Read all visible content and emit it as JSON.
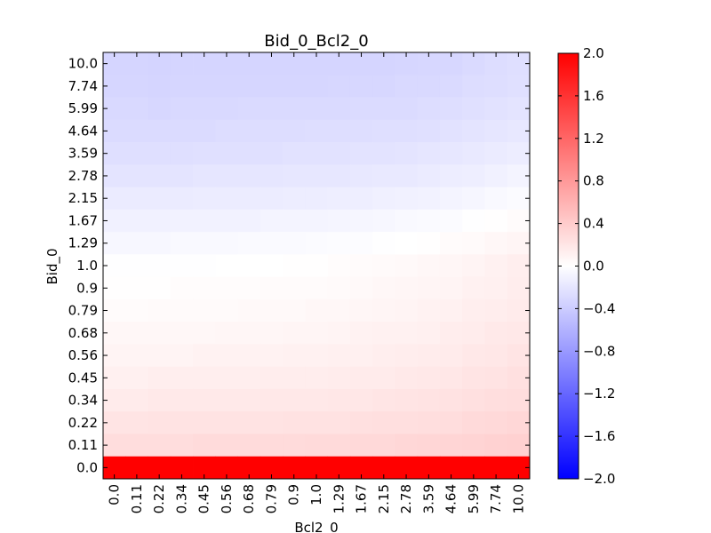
{
  "chart_data": {
    "type": "heatmap",
    "title": "Bid_0_Bcl2_0",
    "xlabel": "Bcl2_0",
    "ylabel": "Bid_0",
    "x_categories": [
      "0.0",
      "0.11",
      "0.22",
      "0.34",
      "0.45",
      "0.56",
      "0.68",
      "0.79",
      "0.9",
      "1.0",
      "1.29",
      "1.67",
      "2.15",
      "2.78",
      "3.59",
      "4.64",
      "5.99",
      "7.74",
      "10.0"
    ],
    "y_categories": [
      "10.0",
      "7.74",
      "5.99",
      "4.64",
      "3.59",
      "2.78",
      "2.15",
      "1.67",
      "1.29",
      "1.0",
      "0.9",
      "0.79",
      "0.68",
      "0.56",
      "0.45",
      "0.34",
      "0.22",
      "0.11",
      "0.0"
    ],
    "values": [
      [
        -0.33,
        -0.33,
        -0.34,
        -0.33,
        -0.33,
        -0.33,
        -0.33,
        -0.33,
        -0.33,
        -0.33,
        -0.33,
        -0.33,
        -0.33,
        -0.32,
        -0.31,
        -0.31,
        -0.29,
        -0.27,
        -0.25
      ],
      [
        -0.32,
        -0.32,
        -0.33,
        -0.32,
        -0.32,
        -0.32,
        -0.32,
        -0.32,
        -0.32,
        -0.32,
        -0.31,
        -0.31,
        -0.31,
        -0.3,
        -0.3,
        -0.29,
        -0.27,
        -0.26,
        -0.24
      ],
      [
        -0.3,
        -0.3,
        -0.31,
        -0.3,
        -0.3,
        -0.3,
        -0.29,
        -0.29,
        -0.29,
        -0.29,
        -0.29,
        -0.28,
        -0.28,
        -0.28,
        -0.27,
        -0.26,
        -0.24,
        -0.23,
        -0.21
      ],
      [
        -0.28,
        -0.28,
        -0.28,
        -0.28,
        -0.28,
        -0.27,
        -0.27,
        -0.27,
        -0.27,
        -0.26,
        -0.26,
        -0.26,
        -0.25,
        -0.25,
        -0.24,
        -0.23,
        -0.21,
        -0.2,
        -0.18
      ],
      [
        -0.25,
        -0.25,
        -0.25,
        -0.25,
        -0.24,
        -0.24,
        -0.24,
        -0.24,
        -0.23,
        -0.23,
        -0.23,
        -0.22,
        -0.22,
        -0.21,
        -0.2,
        -0.19,
        -0.17,
        -0.16,
        -0.14
      ],
      [
        -0.21,
        -0.21,
        -0.21,
        -0.21,
        -0.2,
        -0.2,
        -0.2,
        -0.2,
        -0.19,
        -0.19,
        -0.19,
        -0.18,
        -0.17,
        -0.17,
        -0.16,
        -0.14,
        -0.13,
        -0.11,
        -0.09
      ],
      [
        -0.16,
        -0.16,
        -0.16,
        -0.16,
        -0.15,
        -0.15,
        -0.15,
        -0.15,
        -0.14,
        -0.14,
        -0.13,
        -0.13,
        -0.12,
        -0.11,
        -0.1,
        -0.09,
        -0.07,
        -0.05,
        -0.03
      ],
      [
        -0.11,
        -0.11,
        -0.11,
        -0.1,
        -0.1,
        -0.1,
        -0.1,
        -0.09,
        -0.09,
        -0.09,
        -0.08,
        -0.07,
        -0.06,
        -0.05,
        -0.04,
        -0.03,
        -0.01,
        0.01,
        0.03
      ],
      [
        -0.06,
        -0.06,
        -0.06,
        -0.05,
        -0.05,
        -0.05,
        -0.04,
        -0.04,
        -0.04,
        -0.03,
        -0.02,
        -0.02,
        -0.01,
        0.0,
        0.01,
        0.03,
        0.04,
        0.06,
        0.08
      ],
      [
        -0.01,
        -0.01,
        -0.01,
        -0.01,
        -0.01,
        0.0,
        0.0,
        0.0,
        0.01,
        0.01,
        0.02,
        0.03,
        0.04,
        0.05,
        0.06,
        0.07,
        0.09,
        0.11,
        0.13
      ],
      [
        0.01,
        0.01,
        0.01,
        0.02,
        0.02,
        0.02,
        0.02,
        0.03,
        0.03,
        0.03,
        0.04,
        0.05,
        0.06,
        0.07,
        0.08,
        0.09,
        0.11,
        0.12,
        0.14
      ],
      [
        0.03,
        0.03,
        0.04,
        0.04,
        0.04,
        0.04,
        0.05,
        0.05,
        0.05,
        0.06,
        0.06,
        0.07,
        0.08,
        0.09,
        0.1,
        0.11,
        0.13,
        0.14,
        0.16
      ],
      [
        0.06,
        0.06,
        0.06,
        0.06,
        0.06,
        0.07,
        0.07,
        0.07,
        0.08,
        0.08,
        0.09,
        0.1,
        0.11,
        0.11,
        0.12,
        0.14,
        0.15,
        0.17,
        0.18
      ],
      [
        0.09,
        0.09,
        0.09,
        0.09,
        0.1,
        0.1,
        0.1,
        0.1,
        0.11,
        0.11,
        0.12,
        0.12,
        0.13,
        0.14,
        0.15,
        0.16,
        0.18,
        0.19,
        0.21
      ],
      [
        0.12,
        0.12,
        0.13,
        0.13,
        0.13,
        0.13,
        0.13,
        0.14,
        0.14,
        0.14,
        0.15,
        0.16,
        0.16,
        0.17,
        0.18,
        0.19,
        0.21,
        0.22,
        0.24
      ],
      [
        0.16,
        0.16,
        0.17,
        0.17,
        0.17,
        0.17,
        0.17,
        0.18,
        0.18,
        0.18,
        0.19,
        0.19,
        0.2,
        0.21,
        0.22,
        0.23,
        0.24,
        0.26,
        0.27
      ],
      [
        0.21,
        0.21,
        0.22,
        0.22,
        0.22,
        0.22,
        0.22,
        0.22,
        0.23,
        0.23,
        0.23,
        0.24,
        0.25,
        0.25,
        0.26,
        0.27,
        0.29,
        0.3,
        0.31
      ],
      [
        0.27,
        0.27,
        0.27,
        0.27,
        0.28,
        0.28,
        0.28,
        0.28,
        0.28,
        0.29,
        0.29,
        0.3,
        0.3,
        0.31,
        0.32,
        0.33,
        0.34,
        0.35,
        0.36
      ],
      [
        2.0,
        2.0,
        2.0,
        2.0,
        2.0,
        2.0,
        2.0,
        2.0,
        2.0,
        2.0,
        2.0,
        2.0,
        2.0,
        2.0,
        2.0,
        2.0,
        2.0,
        2.0,
        2.0
      ]
    ],
    "vmin": -2.0,
    "vmax": 2.0,
    "colormap": "bwr",
    "colormap_colors": [
      "#0000ff",
      "#ffffff",
      "#ff0000"
    ],
    "colorbar_ticks": [
      "2.0",
      "1.6",
      "1.2",
      "0.8",
      "0.4",
      "0.0",
      "−0.4",
      "−0.8",
      "−1.2",
      "−1.6",
      "−2.0"
    ],
    "colorbar_tick_values": [
      2.0,
      1.6,
      1.2,
      0.8,
      0.4,
      0.0,
      -0.4,
      -0.8,
      -1.2,
      -1.6,
      -2.0
    ],
    "grid": false,
    "legend": "colorbar-right"
  }
}
